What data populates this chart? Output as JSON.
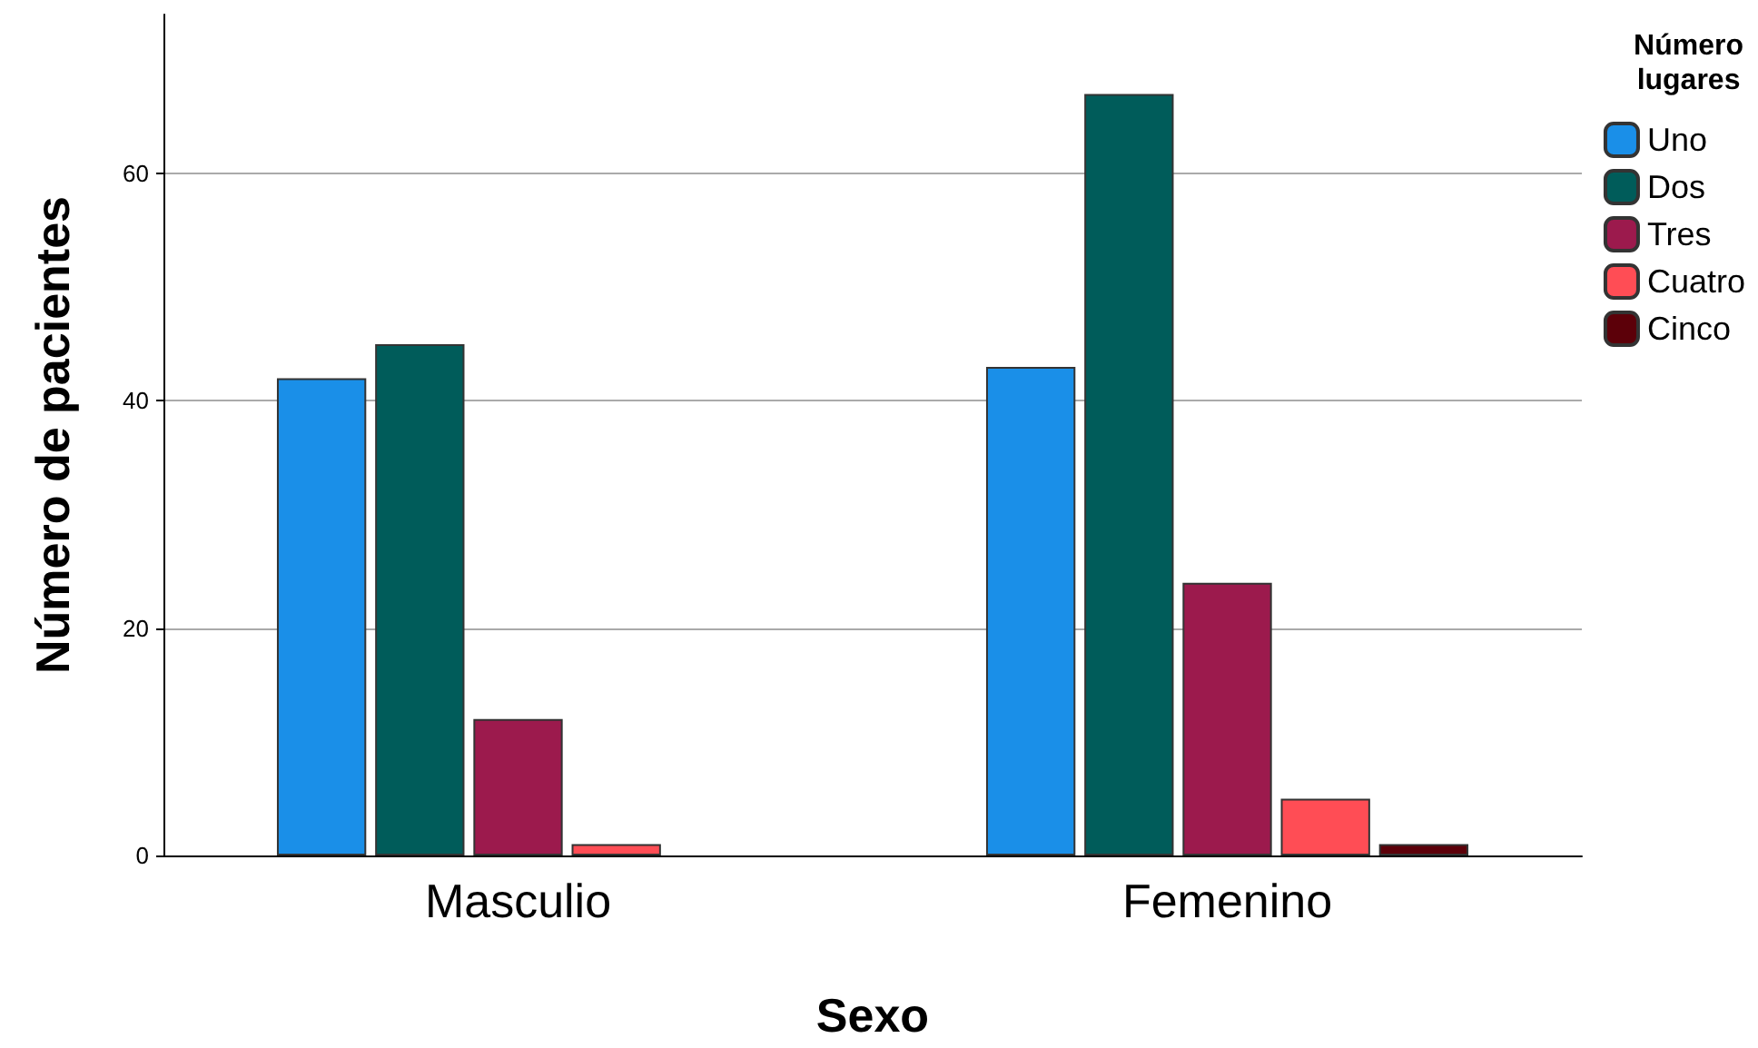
{
  "chart_data": {
    "type": "bar",
    "xlabel": "Sexo",
    "ylabel": "Número de pacientes",
    "legend_title": "Número\nlugares",
    "categories": [
      "Masculio",
      "Femenino"
    ],
    "series": [
      {
        "name": "Uno",
        "color": "#1a8fe8",
        "values": [
          42,
          43
        ]
      },
      {
        "name": "Dos",
        "color": "#005c5a",
        "values": [
          45,
          67
        ]
      },
      {
        "name": "Tres",
        "color": "#9c1a4d",
        "values": [
          12,
          24
        ]
      },
      {
        "name": "Cuatro",
        "color": "#ff4d55",
        "values": [
          1,
          5
        ]
      },
      {
        "name": "Cinco",
        "color": "#5c0009",
        "values": [
          null,
          1
        ]
      }
    ],
    "ylim": [
      0,
      74
    ],
    "yticks": [
      0,
      20,
      40,
      60
    ],
    "grid": "y",
    "legend": "right"
  }
}
